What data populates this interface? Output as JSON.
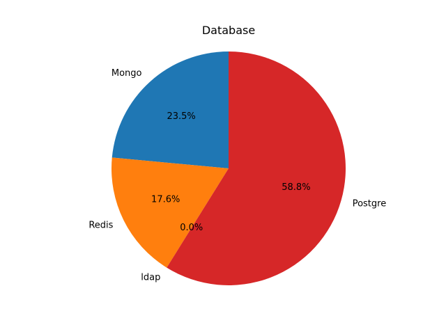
{
  "chart_data": {
    "type": "pie",
    "title": "Database",
    "start_angle_deg": 90,
    "counterclockwise": true,
    "slices": [
      {
        "label": "Mongo",
        "value": 23.5,
        "pct_label": "23.5%",
        "color": "#1f77b4"
      },
      {
        "label": "Redis",
        "value": 17.6,
        "pct_label": "17.6%",
        "color": "#ff7f0e"
      },
      {
        "label": "ldap",
        "value": 0.0,
        "pct_label": "0.0%",
        "color": "#2ca02c"
      },
      {
        "label": "Postgre",
        "value": 58.8,
        "pct_label": "58.8%",
        "color": "#d62728"
      }
    ]
  }
}
